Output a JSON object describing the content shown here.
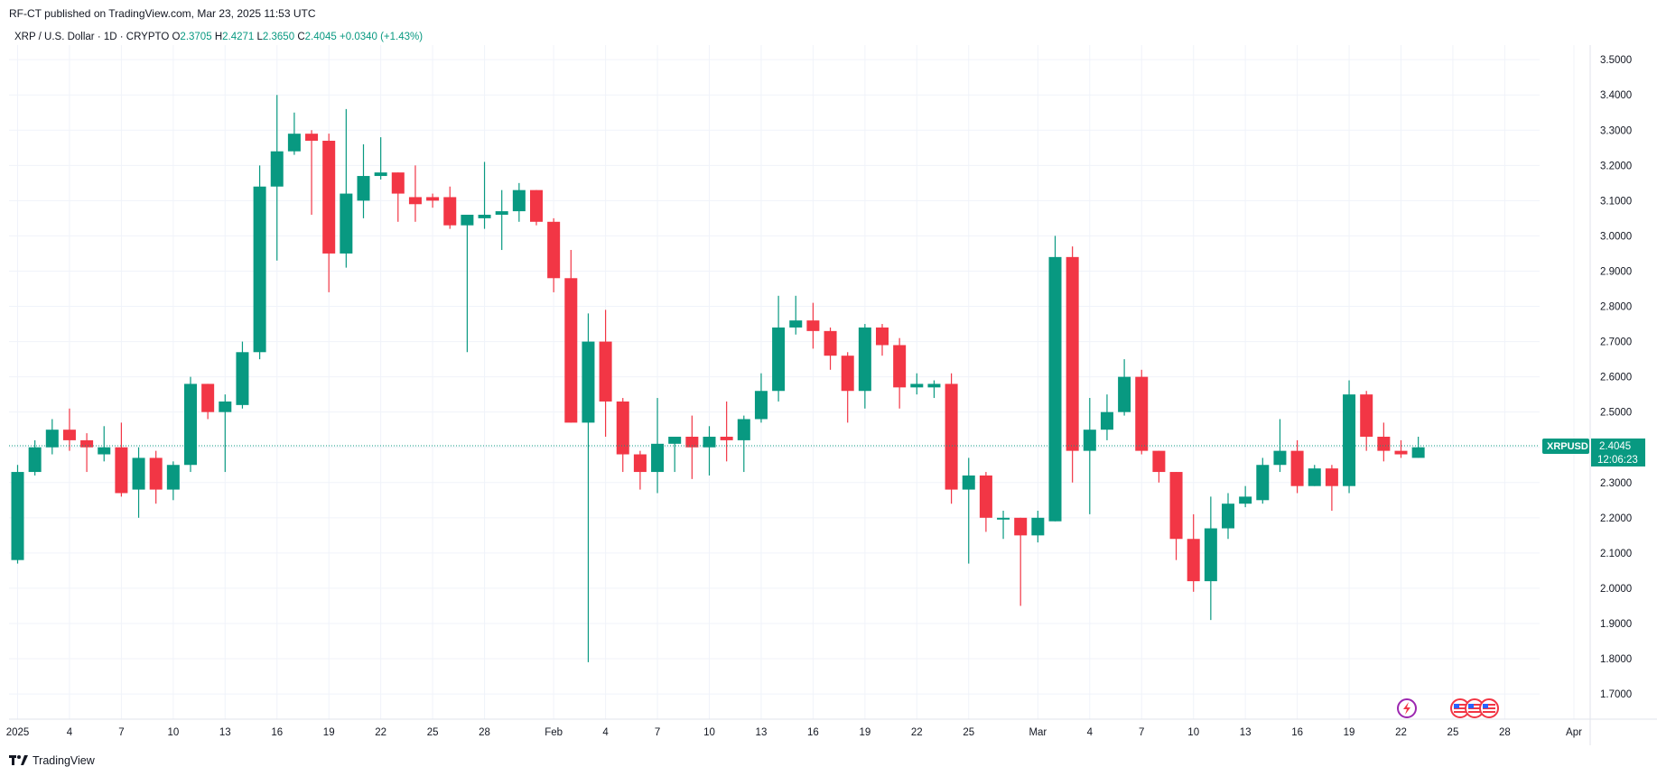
{
  "publisher_line": "RF-CT published on TradingView.com, Mar 23, 2025 11:53 UTC",
  "legend": {
    "symbol": "XRP / U.S. Dollar · 1D · CRYPTO",
    "o_label": "O",
    "o_value": "2.3705",
    "h_label": "H",
    "h_value": "2.4271",
    "l_label": "L",
    "l_value": "2.3650",
    "c_label": "C",
    "c_value": "2.4045",
    "change": "+0.0340 (+1.43%)"
  },
  "price_tag": {
    "symbol": "XRPUSD",
    "price": "2.4045",
    "countdown": "12:06:23"
  },
  "footer_brand": "TradingView",
  "colors": {
    "up": "#089981",
    "down": "#f23645",
    "grid": "#f0f3fa",
    "text": "#131722"
  },
  "icons": [
    "lightning-icon",
    "us-flag-icon"
  ],
  "chart_data": {
    "type": "candlestick",
    "symbol": "XRPUSD",
    "interval": "1D",
    "ylim": [
      1.64,
      3.56
    ],
    "y_ticks": [
      "1.7000",
      "1.8000",
      "1.9000",
      "2.0000",
      "2.1000",
      "2.2000",
      "2.3000",
      "2.4000",
      "2.5000",
      "2.6000",
      "2.7000",
      "2.8000",
      "2.9000",
      "3.0000",
      "3.1000",
      "3.2000",
      "3.3000",
      "3.4000",
      "3.5000"
    ],
    "x_ticks": [
      {
        "label": "2025",
        "i": 0
      },
      {
        "label": "4",
        "i": 3
      },
      {
        "label": "7",
        "i": 6
      },
      {
        "label": "10",
        "i": 9
      },
      {
        "label": "13",
        "i": 12
      },
      {
        "label": "16",
        "i": 15
      },
      {
        "label": "19",
        "i": 18
      },
      {
        "label": "22",
        "i": 21
      },
      {
        "label": "25",
        "i": 24
      },
      {
        "label": "28",
        "i": 27
      },
      {
        "label": "Feb",
        "i": 31
      },
      {
        "label": "4",
        "i": 34
      },
      {
        "label": "7",
        "i": 37
      },
      {
        "label": "10",
        "i": 40
      },
      {
        "label": "13",
        "i": 43
      },
      {
        "label": "16",
        "i": 46
      },
      {
        "label": "19",
        "i": 49
      },
      {
        "label": "22",
        "i": 52
      },
      {
        "label": "25",
        "i": 55
      },
      {
        "label": "Mar",
        "i": 59
      },
      {
        "label": "4",
        "i": 62
      },
      {
        "label": "7",
        "i": 65
      },
      {
        "label": "10",
        "i": 68
      },
      {
        "label": "13",
        "i": 71
      },
      {
        "label": "16",
        "i": 74
      },
      {
        "label": "19",
        "i": 77
      },
      {
        "label": "22",
        "i": 80
      },
      {
        "label": "25",
        "i": 83
      },
      {
        "label": "28",
        "i": 86
      },
      {
        "label": "Apr",
        "i": 90
      }
    ],
    "ohlc": [
      [
        2.08,
        2.35,
        2.07,
        2.33
      ],
      [
        2.33,
        2.42,
        2.32,
        2.4
      ],
      [
        2.4,
        2.48,
        2.38,
        2.45
      ],
      [
        2.45,
        2.51,
        2.39,
        2.42
      ],
      [
        2.42,
        2.44,
        2.33,
        2.4
      ],
      [
        2.38,
        2.46,
        2.36,
        2.4
      ],
      [
        2.4,
        2.47,
        2.26,
        2.27
      ],
      [
        2.28,
        2.4,
        2.2,
        2.37
      ],
      [
        2.37,
        2.39,
        2.24,
        2.28
      ],
      [
        2.28,
        2.36,
        2.25,
        2.35
      ],
      [
        2.35,
        2.6,
        2.33,
        2.58
      ],
      [
        2.58,
        2.58,
        2.48,
        2.5
      ],
      [
        2.5,
        2.55,
        2.33,
        2.53
      ],
      [
        2.52,
        2.7,
        2.51,
        2.67
      ],
      [
        2.67,
        3.2,
        2.65,
        3.14
      ],
      [
        3.14,
        3.4,
        2.93,
        3.24
      ],
      [
        3.24,
        3.35,
        3.23,
        3.29
      ],
      [
        3.29,
        3.3,
        3.06,
        3.27
      ],
      [
        3.27,
        3.29,
        2.84,
        2.95
      ],
      [
        2.95,
        3.36,
        2.91,
        3.12
      ],
      [
        3.1,
        3.26,
        3.05,
        3.17
      ],
      [
        3.17,
        3.28,
        3.16,
        3.18
      ],
      [
        3.18,
        3.18,
        3.04,
        3.12
      ],
      [
        3.11,
        3.2,
        3.04,
        3.09
      ],
      [
        3.11,
        3.12,
        3.08,
        3.1
      ],
      [
        3.11,
        3.14,
        3.02,
        3.03
      ],
      [
        3.03,
        3.06,
        2.67,
        3.06
      ],
      [
        3.05,
        3.21,
        3.02,
        3.06
      ],
      [
        3.06,
        3.13,
        2.96,
        3.07
      ],
      [
        3.07,
        3.15,
        3.04,
        3.13
      ],
      [
        3.13,
        3.13,
        3.03,
        3.04
      ],
      [
        3.04,
        3.05,
        2.84,
        2.88
      ],
      [
        2.88,
        2.96,
        2.47,
        2.47
      ],
      [
        2.47,
        2.78,
        1.79,
        2.7
      ],
      [
        2.7,
        2.79,
        2.43,
        2.53
      ],
      [
        2.53,
        2.54,
        2.33,
        2.38
      ],
      [
        2.38,
        2.39,
        2.28,
        2.33
      ],
      [
        2.33,
        2.54,
        2.27,
        2.41
      ],
      [
        2.41,
        2.42,
        2.33,
        2.43
      ],
      [
        2.43,
        2.49,
        2.31,
        2.4
      ],
      [
        2.4,
        2.46,
        2.32,
        2.43
      ],
      [
        2.43,
        2.53,
        2.36,
        2.42
      ],
      [
        2.42,
        2.49,
        2.33,
        2.48
      ],
      [
        2.48,
        2.61,
        2.47,
        2.56
      ],
      [
        2.56,
        2.83,
        2.53,
        2.74
      ],
      [
        2.74,
        2.83,
        2.72,
        2.76
      ],
      [
        2.76,
        2.81,
        2.68,
        2.73
      ],
      [
        2.73,
        2.74,
        2.62,
        2.66
      ],
      [
        2.66,
        2.67,
        2.47,
        2.56
      ],
      [
        2.56,
        2.75,
        2.51,
        2.74
      ],
      [
        2.74,
        2.75,
        2.66,
        2.69
      ],
      [
        2.69,
        2.71,
        2.51,
        2.57
      ],
      [
        2.57,
        2.61,
        2.55,
        2.58
      ],
      [
        2.57,
        2.59,
        2.54,
        2.58
      ],
      [
        2.58,
        2.61,
        2.24,
        2.28
      ],
      [
        2.28,
        2.37,
        2.07,
        2.32
      ],
      [
        2.32,
        2.33,
        2.16,
        2.2
      ],
      [
        2.2,
        2.22,
        2.14,
        2.2
      ],
      [
        2.2,
        2.2,
        1.95,
        2.15
      ],
      [
        2.15,
        2.22,
        2.13,
        2.2
      ],
      [
        2.19,
        3.0,
        2.19,
        2.94
      ],
      [
        2.94,
        2.97,
        2.3,
        2.39
      ],
      [
        2.39,
        2.54,
        2.21,
        2.45
      ],
      [
        2.45,
        2.55,
        2.42,
        2.5
      ],
      [
        2.5,
        2.65,
        2.49,
        2.6
      ],
      [
        2.6,
        2.62,
        2.38,
        2.39
      ],
      [
        2.39,
        2.39,
        2.3,
        2.33
      ],
      [
        2.33,
        2.33,
        2.08,
        2.14
      ],
      [
        2.14,
        2.21,
        1.99,
        2.02
      ],
      [
        2.02,
        2.26,
        1.91,
        2.17
      ],
      [
        2.17,
        2.27,
        2.14,
        2.24
      ],
      [
        2.24,
        2.29,
        2.23,
        2.26
      ],
      [
        2.25,
        2.37,
        2.24,
        2.35
      ],
      [
        2.35,
        2.48,
        2.33,
        2.39
      ],
      [
        2.39,
        2.42,
        2.27,
        2.29
      ],
      [
        2.29,
        2.35,
        2.29,
        2.34
      ],
      [
        2.34,
        2.35,
        2.22,
        2.29
      ],
      [
        2.29,
        2.59,
        2.27,
        2.55
      ],
      [
        2.55,
        2.56,
        2.39,
        2.43
      ],
      [
        2.43,
        2.47,
        2.36,
        2.39
      ],
      [
        2.39,
        2.42,
        2.37,
        2.38
      ],
      [
        2.37,
        2.43,
        2.37,
        2.4
      ]
    ]
  }
}
